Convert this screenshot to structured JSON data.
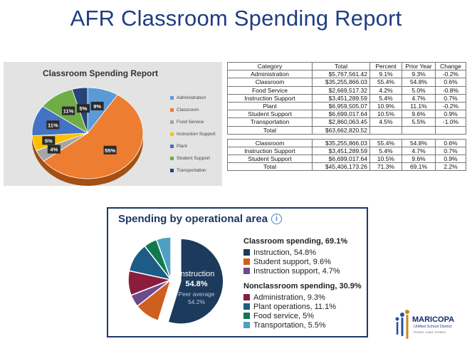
{
  "title": "AFR Classroom Spending Report",
  "excel_chart": {
    "title": "Classroom Spending Report",
    "legend": [
      "Administration",
      "Classroom",
      "Food Service",
      "Instruction Support",
      "Plant",
      "Student Support",
      "Transportation"
    ],
    "colors": [
      "#5b9bd5",
      "#ed7d31",
      "#a5a5a5",
      "#ffc000",
      "#4472c4",
      "#70ad47",
      "#264478"
    ],
    "data_labels": [
      "9%",
      "55%",
      "4%",
      "5%",
      "11%",
      "11%",
      "5%"
    ]
  },
  "table": {
    "headers": [
      "Category",
      "Total",
      "Percent",
      "Prior Year",
      "Change"
    ],
    "rows": [
      [
        "Administration",
        "$5,767,561.42",
        "9.1%",
        "9.3%",
        "-0.2%"
      ],
      [
        "Classroom",
        "$35,255,866.03",
        "55.4%",
        "54.8%",
        "0.6%"
      ],
      [
        "Food Service",
        "$2,669,517.32",
        "4.2%",
        "5.0%",
        "-0.8%"
      ],
      [
        "Instruction Support",
        "$3,451,289.59",
        "5.4%",
        "4.7%",
        "0.7%"
      ],
      [
        "Plant",
        "$6,959,505.07",
        "10.9%",
        "11.1%",
        "-0.2%"
      ],
      [
        "Student Support",
        "$6,699,017.64",
        "10.5%",
        "9.6%",
        "0.9%"
      ],
      [
        "Transportation",
        "$2,860,063.45",
        "4.5%",
        "5.5%",
        "-1.0%"
      ],
      [
        "Total",
        "$63,662,820.52",
        "",
        "",
        ""
      ]
    ],
    "rows2": [
      [
        "Classroom",
        "$35,255,866.03",
        "55.4%",
        "54.8%",
        "0.6%"
      ],
      [
        "Instruction Support",
        "$3,451,289.59",
        "5.4%",
        "4.7%",
        "0.7%"
      ],
      [
        "Student Support",
        "$6,699,017.64",
        "10.5%",
        "9.6%",
        "0.9%"
      ],
      [
        "Total",
        "$45,406,173.26",
        "71.3%",
        "69.1%",
        "2.2%"
      ]
    ]
  },
  "card": {
    "title": "Spending by operational area",
    "info_icon": "i",
    "classroom_heading": "Classroom spending, 69.1%",
    "nonclassroom_heading": "Nonclassroom spending, 30.9%",
    "classroom_items": [
      "Instruction, 54.8%",
      "Student support, 9.6%",
      "Instruction support, 4.7%"
    ],
    "nonclassroom_items": [
      "Administration, 9.3%",
      "Plant operations, 11.1%",
      "Food service, 5%",
      "Transportation, 5.5%"
    ],
    "callout_label": "Instruction",
    "callout_value": "54.8%",
    "callout_peer_label": "Peer average",
    "callout_peer_value": "54.2%"
  },
  "logo": {
    "name": "MARICOPA",
    "subtitle": "Unified School District",
    "tagline": "Proven. Lead. Achieve."
  },
  "chart_data": [
    {
      "type": "pie",
      "title": "Classroom Spending Report",
      "categories": [
        "Administration",
        "Classroom",
        "Food Service",
        "Instruction Support",
        "Plant",
        "Student Support",
        "Transportation"
      ],
      "values": [
        9.1,
        55.4,
        4.2,
        5.4,
        10.9,
        10.5,
        4.5
      ],
      "legend_position": "right"
    },
    {
      "type": "pie",
      "title": "Spending by operational area",
      "categories": [
        "Instruction",
        "Student support",
        "Instruction support",
        "Administration",
        "Plant operations",
        "Food service",
        "Transportation"
      ],
      "values": [
        54.8,
        9.6,
        4.7,
        9.3,
        11.1,
        5.0,
        5.5
      ],
      "colors": [
        "#1c3a5c",
        "#cf5f1f",
        "#6e4a8c",
        "#8a1d3b",
        "#1d5c86",
        "#0f7a4f",
        "#4ea0c3"
      ],
      "legend_position": "right"
    }
  ]
}
